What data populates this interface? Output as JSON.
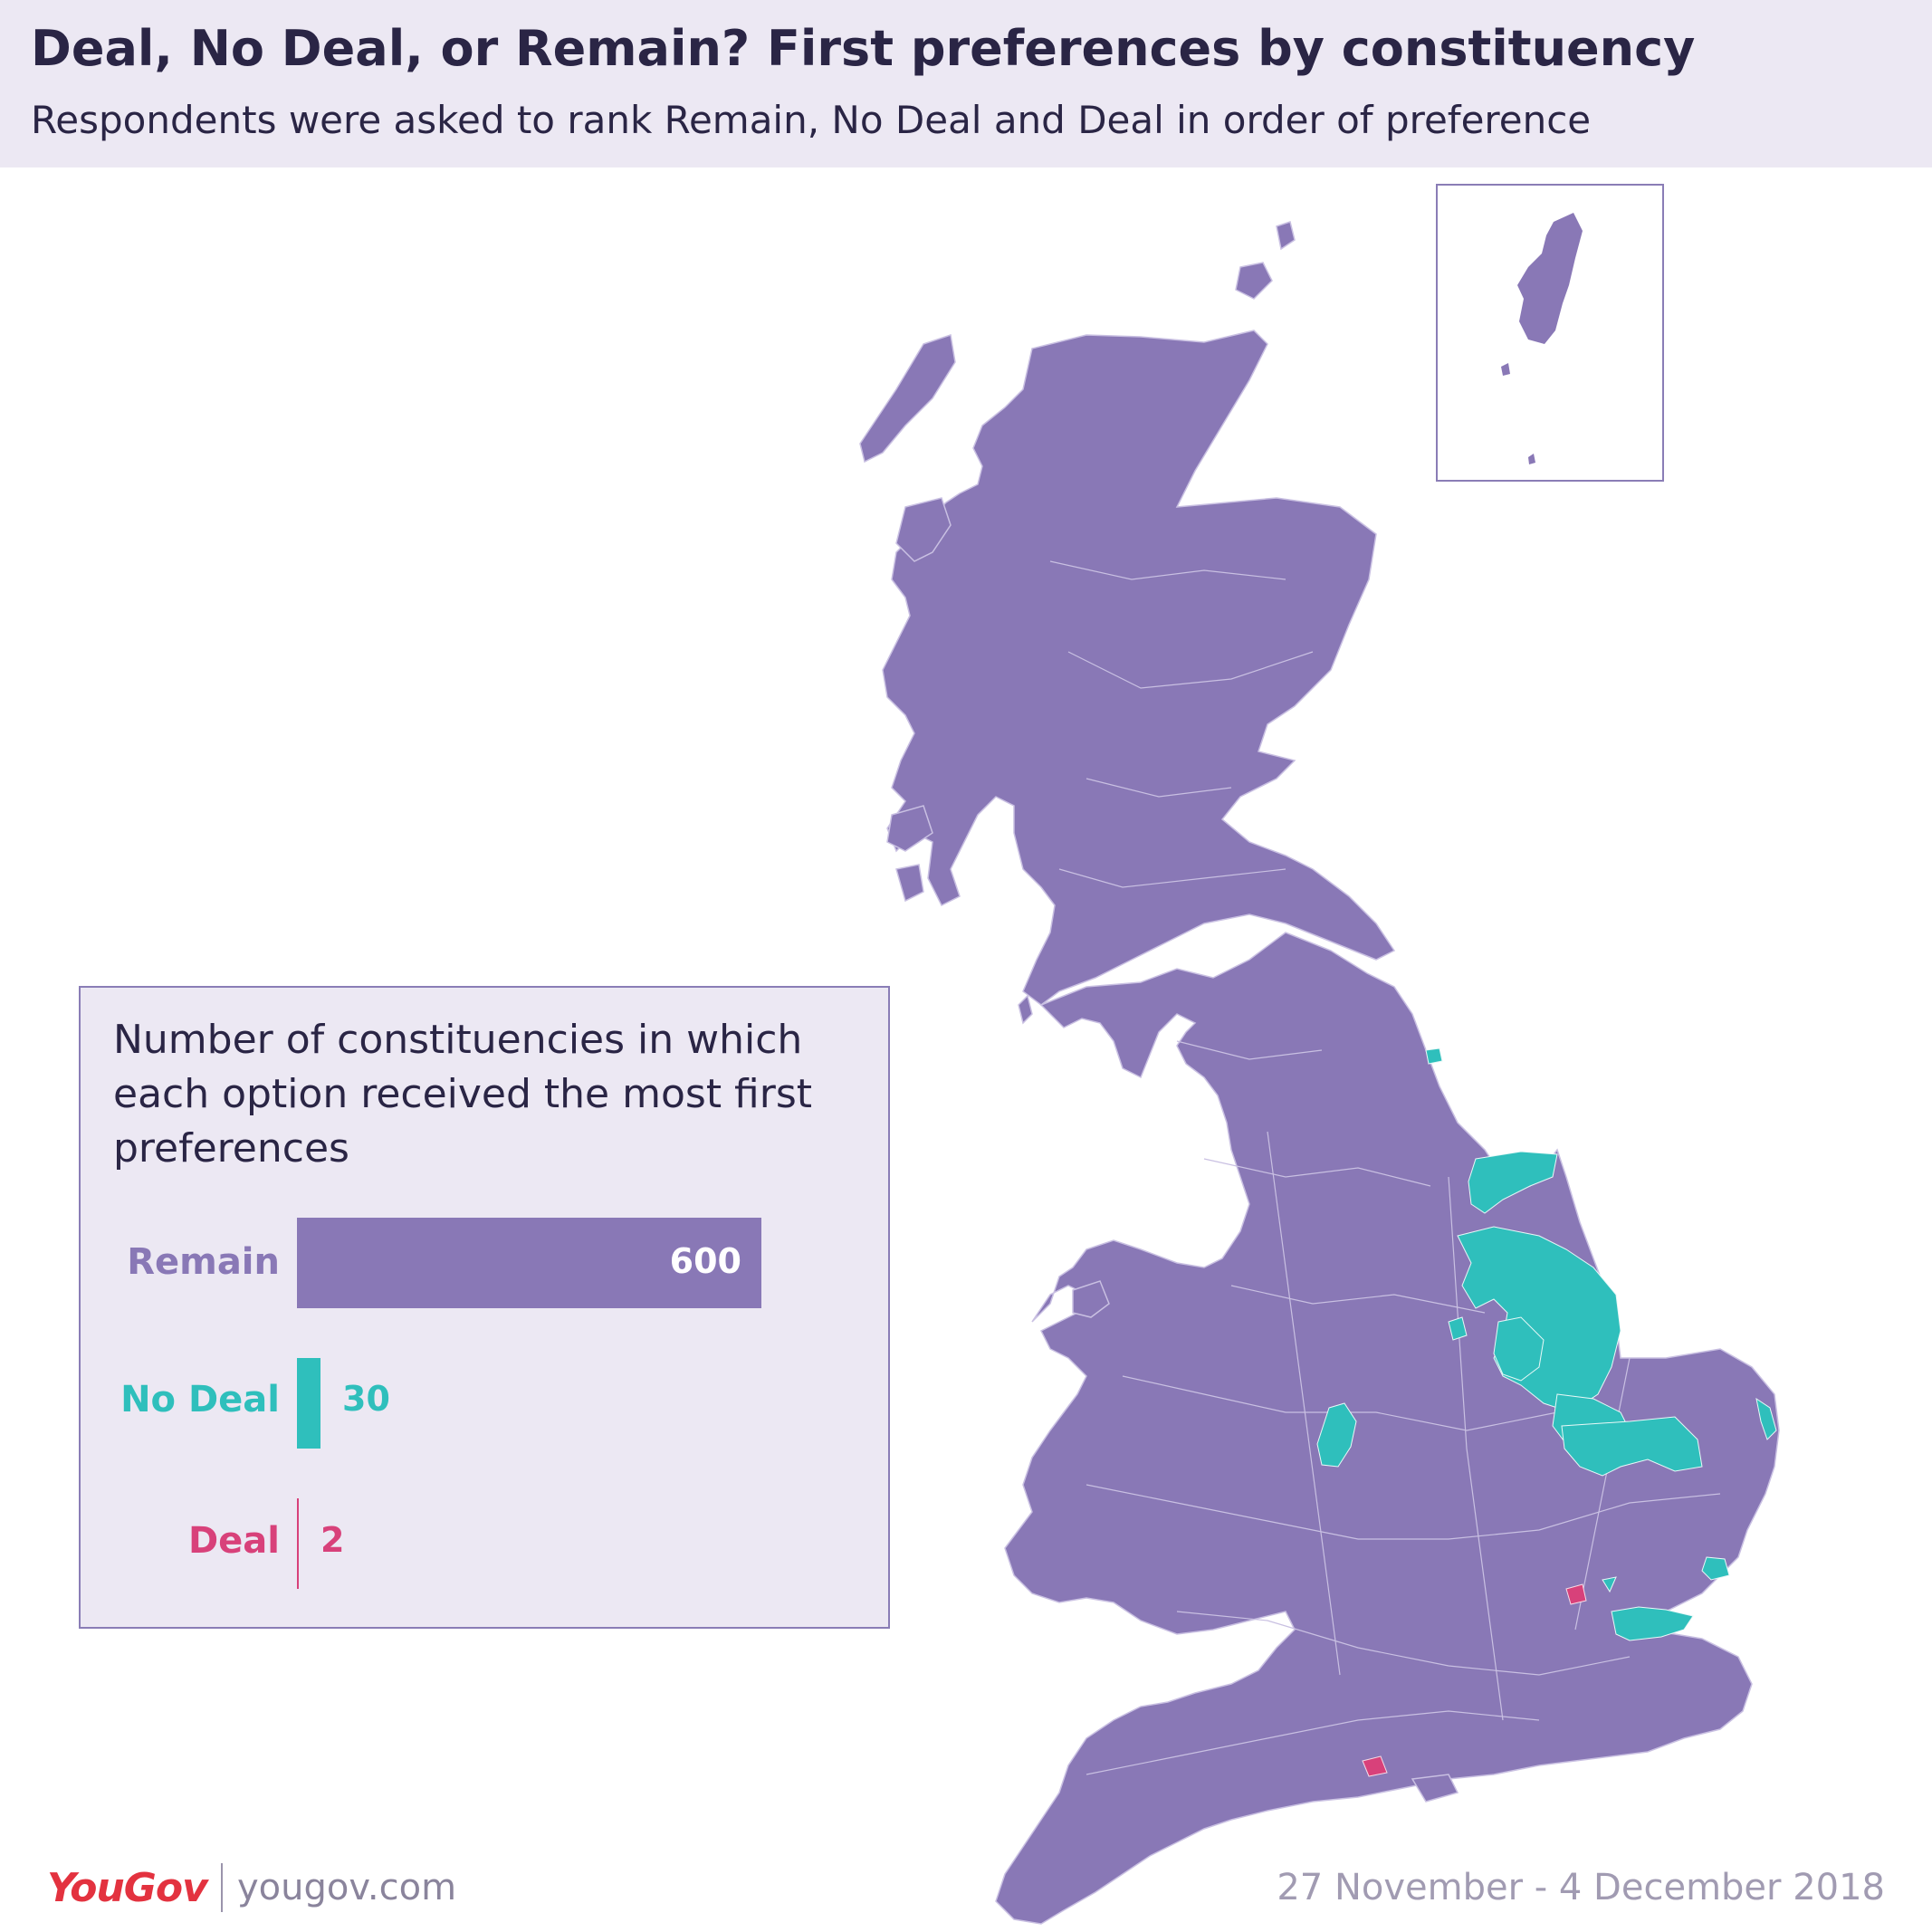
{
  "header": {
    "title": "Deal, No Deal, or Remain? First preferences by constituency",
    "subtitle": "Respondents were asked to rank Remain, No Deal and Deal in order of preference"
  },
  "colors": {
    "remain": "#8978b6",
    "no_deal": "#2fbfbc",
    "deal": "#d8417a",
    "header_bg": "#ece8f3",
    "text_dark": "#2a2545"
  },
  "chart_data": {
    "type": "bar",
    "title": "Number of constituencies in which each option received the most first preferences",
    "categories": [
      "Remain",
      "No Deal",
      "Deal"
    ],
    "values": [
      600,
      30,
      2
    ],
    "xlabel": "",
    "ylabel": ""
  },
  "legend": {
    "title": "Number of constituencies in which each option received the most first preferences",
    "items": [
      {
        "label": "Remain",
        "value": 600,
        "value_text": "600"
      },
      {
        "label": "No Deal",
        "value": 30,
        "value_text": "30"
      },
      {
        "label": "Deal",
        "value": 2,
        "value_text": "2"
      }
    ]
  },
  "footer": {
    "logo": "YouGov",
    "site": "yougov.com",
    "date": "27 November - 4 December 2018"
  }
}
